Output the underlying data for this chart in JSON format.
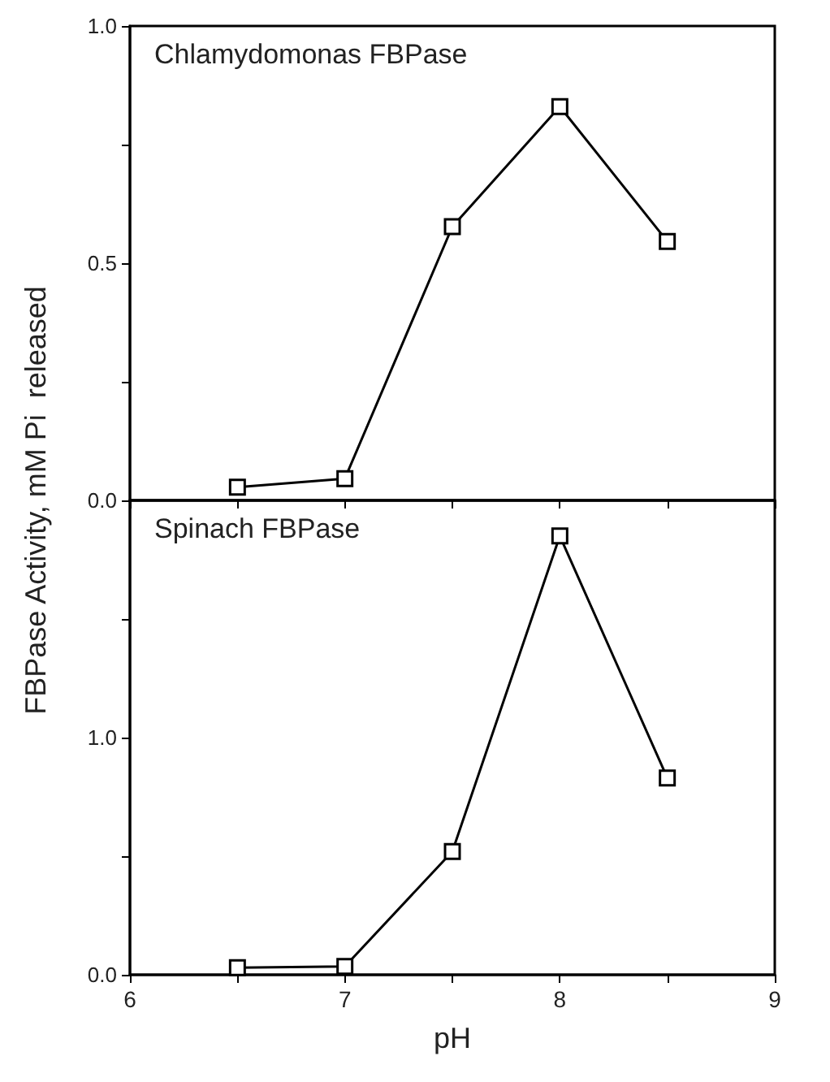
{
  "chart_data": [
    {
      "type": "line",
      "title": "Chlamydomonas FBPase",
      "ylabel": "FBPase Activity, mM Pi  released",
      "x": [
        6.5,
        7,
        7.5,
        8,
        8.5
      ],
      "series": [
        {
          "color": "#000000",
          "values": [
            0.028,
            0.046,
            0.577,
            0.83,
            0.546
          ]
        }
      ],
      "xlim": [
        6,
        9
      ],
      "xticks": [
        6,
        {
          "value": 6.5,
          "label": null
        },
        7,
        {
          "value": 7.5,
          "label": null
        },
        8,
        {
          "value": 8.5,
          "label": null
        },
        9
      ],
      "ylim": [
        0,
        1
      ],
      "yticks": [
        {
          "value": 0,
          "label": "0.0"
        },
        {
          "value": 0.25,
          "label": null
        },
        {
          "value": 0.5,
          "label": "0.5"
        },
        {
          "value": 0.75,
          "label": null
        },
        {
          "value": 1,
          "label": "1.0"
        }
      ],
      "tick_labels": "y",
      "marker": "square",
      "line_style": "solid"
    },
    {
      "type": "line",
      "title": "Spinach FBPase",
      "xlabel": "pH",
      "x": [
        6.5,
        7,
        7.5,
        8,
        8.5
      ],
      "series": [
        {
          "color": "#000000",
          "values": [
            0.03,
            0.035,
            0.52,
            1.85,
            0.83
          ]
        }
      ],
      "xlim": [
        6,
        9
      ],
      "xticks": [
        6,
        {
          "value": 6.5,
          "label": null
        },
        7,
        {
          "value": 7.5,
          "label": null
        },
        8,
        {
          "value": 8.5,
          "label": null
        },
        9
      ],
      "ylim": [
        0,
        2
      ],
      "yticks": [
        {
          "value": 0,
          "label": "0.0"
        },
        {
          "value": 0.5,
          "label": null
        },
        {
          "value": 1,
          "label": "1.0"
        },
        {
          "value": 1.5,
          "label": null
        }
      ],
      "marker": "square",
      "line_style": "solid"
    }
  ]
}
